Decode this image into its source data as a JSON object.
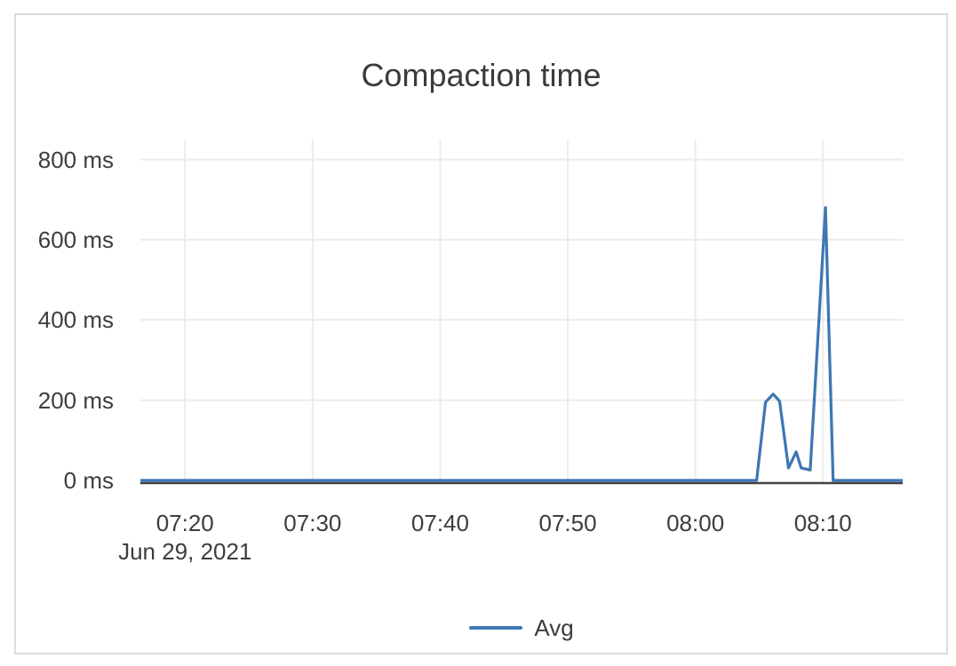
{
  "colors": {
    "line": "#3e77b3",
    "grid": "#ececec",
    "axis_line": "#414141",
    "tick_text": "#3d3d3d",
    "title_text": "#3b3b3b",
    "card_border": "#dcdcdc",
    "background": "#ffffff"
  },
  "chart_data": {
    "type": "line",
    "title": "Compaction time",
    "xlabel": "",
    "ylabel": "",
    "grid": true,
    "legend_position": "bottom",
    "x_axis": {
      "date_label": "Jun 29, 2021",
      "tick_labels": [
        "07:20",
        "07:30",
        "07:40",
        "07:50",
        "08:00",
        "08:10"
      ],
      "tick_minutes": [
        20,
        30,
        40,
        50,
        60,
        70
      ],
      "range_times": [
        "07:16:30",
        "08:16:15"
      ],
      "range_minutes": [
        16.5,
        76.25
      ]
    },
    "y_axis": {
      "unit": "ms",
      "tick_labels": [
        "0 ms",
        "200 ms",
        "400 ms",
        "600 ms",
        "800 ms"
      ],
      "tick_values": [
        0,
        200,
        400,
        600,
        800
      ],
      "range": [
        0,
        850
      ]
    },
    "series": [
      {
        "name": "Avg",
        "color": "#3e77b3",
        "points": [
          {
            "time": "07:16:30",
            "value_ms": 0
          },
          {
            "time": "08:04:48",
            "value_ms": 0
          },
          {
            "time": "08:05:30",
            "value_ms": 195
          },
          {
            "time": "08:06:06",
            "value_ms": 215
          },
          {
            "time": "08:06:36",
            "value_ms": 198
          },
          {
            "time": "08:07:18",
            "value_ms": 31
          },
          {
            "time": "08:07:54",
            "value_ms": 71
          },
          {
            "time": "08:08:18",
            "value_ms": 31
          },
          {
            "time": "08:09:00",
            "value_ms": 26
          },
          {
            "time": "08:10:12",
            "value_ms": 680
          },
          {
            "time": "08:10:48",
            "value_ms": 0
          },
          {
            "time": "08:16:15",
            "value_ms": 0
          }
        ]
      }
    ]
  },
  "legend": {
    "items": [
      {
        "label": "Avg",
        "color": "#3e77b3"
      }
    ]
  }
}
